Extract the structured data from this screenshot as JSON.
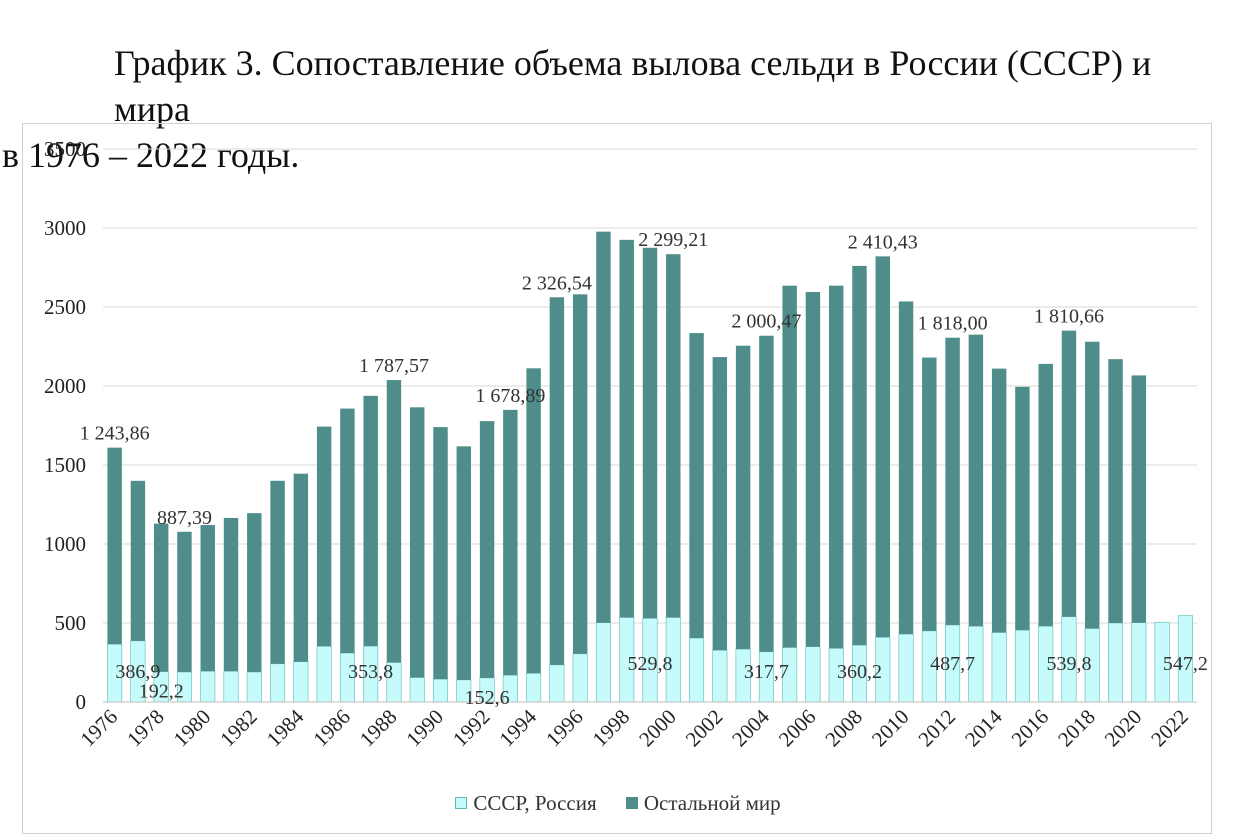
{
  "title": {
    "line1": "График 3. Сопоставление объема вылова сельди в России (СССР) и мира",
    "line2": "в 1976 – 2022 годы."
  },
  "colors": {
    "russia_fill": "#c5fbfb",
    "russia_stroke": "#5fb8b8",
    "world": "#4e8d89",
    "grid": "#d9d9d9"
  },
  "chart_data": {
    "type": "bar",
    "stacked": true,
    "categories": [
      "1976",
      "1977",
      "1978",
      "1979",
      "1980",
      "1981",
      "1982",
      "1983",
      "1984",
      "1985",
      "1986",
      "1987",
      "1988",
      "1989",
      "1990",
      "1991",
      "1992",
      "1993",
      "1994",
      "1995",
      "1996",
      "1997",
      "1998",
      "1999",
      "2000",
      "2001",
      "2002",
      "2003",
      "2004",
      "2005",
      "2006",
      "2007",
      "2008",
      "2009",
      "2010",
      "2011",
      "2012",
      "2013",
      "2014",
      "2015",
      "2016",
      "2017",
      "2018",
      "2019",
      "2020",
      "2021",
      "2022"
    ],
    "x_tick_labels": [
      "1976",
      "1978",
      "1980",
      "1982",
      "1984",
      "1986",
      "1988",
      "1990",
      "1992",
      "1994",
      "1996",
      "1998",
      "2000",
      "2002",
      "2004",
      "2006",
      "2008",
      "2010",
      "2012",
      "2014",
      "2016",
      "2018",
      "2020",
      "2022"
    ],
    "series": [
      {
        "name": "СССР, Россия",
        "values": [
          366,
          386.9,
          192.2,
          190,
          195,
          195,
          190,
          242,
          255,
          353,
          310,
          353.8,
          250,
          155,
          145,
          140,
          152.6,
          170,
          182,
          235,
          305,
          502,
          535,
          529.8,
          535,
          405,
          328,
          335,
          317.7,
          345,
          350,
          340,
          360.2,
          410,
          430,
          450,
          487.7,
          480,
          440,
          455,
          480,
          539.8,
          465,
          500,
          502,
          505,
          547.2
        ]
      },
      {
        "name": "Остальной мир",
        "values": [
          1243.86,
          1013,
          937,
          887.39,
          925,
          970,
          1005,
          1158,
          1190,
          1390,
          1547,
          1584,
          1787.57,
          1710,
          1595,
          1478,
          1625,
          1678.89,
          1930,
          2326.54,
          2275,
          2475,
          2390,
          2345,
          2299.21,
          1930,
          1855,
          1920,
          2000.47,
          2290,
          2245,
          2295,
          2400,
          2410.43,
          2105,
          1730,
          1818.0,
          1845,
          1670,
          1540,
          1660,
          1810.66,
          1815,
          1670,
          1565,
          0,
          0
        ]
      }
    ],
    "data_labels": [
      {
        "year": "1976",
        "series": "Остальной мир",
        "text": "1 243,86"
      },
      {
        "year": "1977",
        "series": "СССР, Россия",
        "text": "386,9"
      },
      {
        "year": "1978",
        "series": "СССР, Россия",
        "text": "192,2"
      },
      {
        "year": "1979",
        "series": "Остальной мир",
        "text": "887,39"
      },
      {
        "year": "1987",
        "series": "СССР, Россия",
        "text": "353,8"
      },
      {
        "year": "1988",
        "series": "Остальной мир",
        "text": "1 787,57"
      },
      {
        "year": "1992",
        "series": "СССР, Россия",
        "text": "152,6"
      },
      {
        "year": "1993",
        "series": "Остальной мир",
        "text": "1 678,89"
      },
      {
        "year": "1995",
        "series": "Остальной мир",
        "text": "2 326,54"
      },
      {
        "year": "1999",
        "series": "СССР, Россия",
        "text": "529,8"
      },
      {
        "year": "2000",
        "series": "Остальной мир",
        "text": "2 299,21"
      },
      {
        "year": "2004",
        "series": "СССР, Россия",
        "text": "317,7"
      },
      {
        "year": "2004",
        "series": "Остальной мир",
        "text": "2 000,47"
      },
      {
        "year": "2008",
        "series": "СССР, Россия",
        "text": "360,2"
      },
      {
        "year": "2009",
        "series": "Остальной мир",
        "text": "2 410,43"
      },
      {
        "year": "2012",
        "series": "СССР, Россия",
        "text": "487,7"
      },
      {
        "year": "2012",
        "series": "Остальной мир",
        "text": "1 818,00"
      },
      {
        "year": "2017",
        "series": "СССР, Россия",
        "text": "539,8"
      },
      {
        "year": "2017",
        "series": "Остальной мир",
        "text": "1 810,66"
      },
      {
        "year": "2022",
        "series": "СССР, Россия",
        "text": "547,2"
      }
    ],
    "ylim": [
      0,
      3500
    ],
    "y_ticks": [
      0,
      500,
      1000,
      1500,
      2000,
      2500,
      3000,
      3500
    ],
    "grid": true,
    "legend_position": "bottom"
  }
}
